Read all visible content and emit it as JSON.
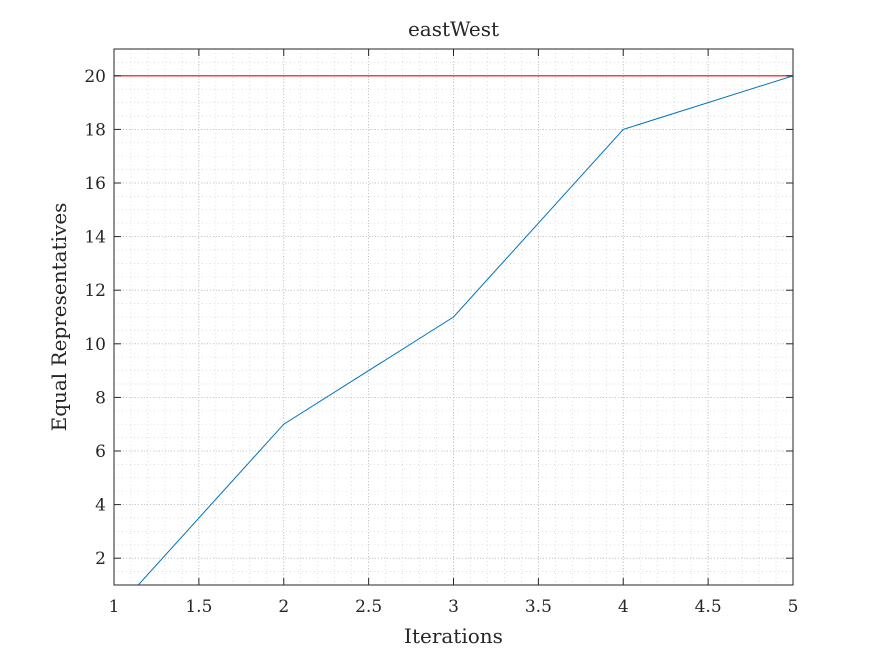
{
  "chart_data": {
    "type": "line",
    "title": "eastWest",
    "xlabel": "Iterations",
    "ylabel": "Equal Representatives",
    "xlim": [
      1,
      5
    ],
    "ylim": [
      1,
      21
    ],
    "xticks": [
      "1",
      "1.5",
      "2",
      "2.5",
      "3",
      "3.5",
      "4",
      "4.5",
      "5"
    ],
    "yticks": [
      "2",
      "4",
      "6",
      "8",
      "10",
      "12",
      "14",
      "16",
      "18",
      "20"
    ],
    "grid": "on (major and minor, dotted)",
    "series": [
      {
        "color": "#0072BD",
        "x": [
          1,
          2,
          3,
          4,
          5
        ],
        "y": [
          0,
          7,
          11,
          18,
          20
        ]
      },
      {
        "color": "#FF0000",
        "x": [
          1,
          5
        ],
        "y": [
          20,
          20
        ]
      }
    ]
  }
}
